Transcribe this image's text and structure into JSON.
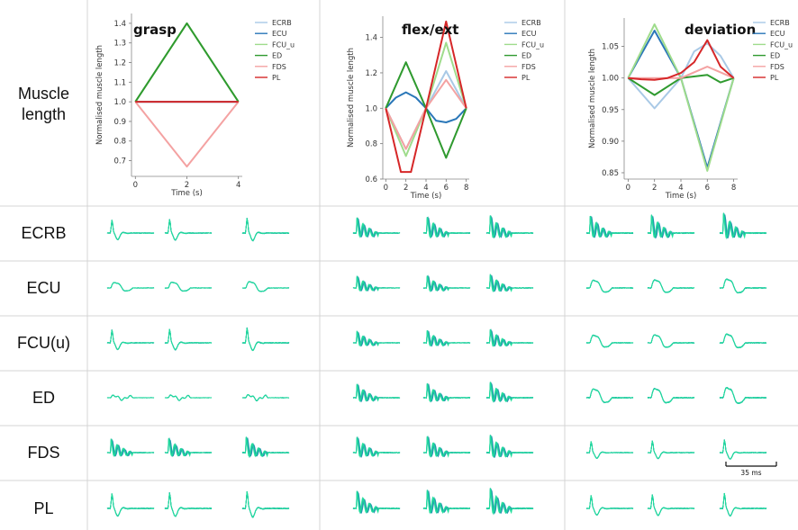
{
  "row_labels": [
    "Muscle length",
    "ECRB",
    "ECU",
    "FCU(u)",
    "ED",
    "FDS",
    "PL"
  ],
  "scale_bar_label": "35 ms",
  "colors": {
    "ECRB": "#a9c9e6",
    "ECU": "#2a77b8",
    "FCU_u": "#9fdc8c",
    "ED": "#2f9a2f",
    "FDS": "#f4a2a2",
    "PL": "#d62728",
    "wave_dark": "#1347b8",
    "wave_light": "#20e39a"
  },
  "chart_data": [
    {
      "type": "line",
      "title": "grasp",
      "xlabel": "Time (s)",
      "ylabel": "Normalised muscle length",
      "xlim": [
        -0.15,
        4.15
      ],
      "ylim": [
        0.62,
        1.45
      ],
      "xticks": [
        0,
        2,
        4
      ],
      "yticks": [
        0.7,
        0.8,
        0.9,
        1.0,
        1.1,
        1.2,
        1.3,
        1.4
      ],
      "ytick_labels": [
        "0.7",
        "0.8",
        "0.9",
        "1.0",
        "1.1",
        "1.2",
        "1.3",
        "1.4"
      ],
      "legend": "top-right",
      "series": [
        {
          "name": "ECRB",
          "x": [
            0,
            2,
            4
          ],
          "y": [
            1.0,
            1.0,
            1.0
          ]
        },
        {
          "name": "ECU",
          "x": [
            0,
            2,
            4
          ],
          "y": [
            1.0,
            1.0,
            1.0
          ]
        },
        {
          "name": "FCU_u",
          "x": [
            0,
            2,
            4
          ],
          "y": [
            1.0,
            1.4,
            1.0
          ]
        },
        {
          "name": "ED",
          "x": [
            0,
            2,
            4
          ],
          "y": [
            1.0,
            1.4,
            1.0
          ]
        },
        {
          "name": "FDS",
          "x": [
            0,
            2,
            4
          ],
          "y": [
            1.0,
            0.67,
            1.0
          ]
        },
        {
          "name": "PL",
          "x": [
            0,
            2,
            4
          ],
          "y": [
            1.0,
            1.0,
            1.0
          ]
        }
      ]
    },
    {
      "type": "line",
      "title": "flex/ext",
      "xlabel": "Time (s)",
      "ylabel": "Normalised muscle length",
      "xlim": [
        -0.3,
        8.3
      ],
      "ylim": [
        0.6,
        1.52
      ],
      "xticks": [
        0,
        2,
        4,
        6,
        8
      ],
      "yticks": [
        0.6,
        0.8,
        1.0,
        1.2,
        1.4
      ],
      "ytick_labels": [
        "0.6",
        "0.8",
        "1.0",
        "1.2",
        "1.4"
      ],
      "legend": "top-right",
      "series": [
        {
          "name": "ECRB",
          "x": [
            0,
            2,
            4,
            6,
            8
          ],
          "y": [
            1.0,
            0.77,
            1.0,
            1.21,
            1.0
          ]
        },
        {
          "name": "ECU",
          "x": [
            0,
            1,
            2,
            3,
            4,
            5,
            6,
            7,
            8
          ],
          "y": [
            1.0,
            1.06,
            1.09,
            1.06,
            1.0,
            0.93,
            0.92,
            0.94,
            1.0
          ]
        },
        {
          "name": "FCU_u",
          "x": [
            0,
            2,
            4,
            6,
            8
          ],
          "y": [
            1.0,
            0.73,
            1.0,
            1.37,
            1.0
          ]
        },
        {
          "name": "ED",
          "x": [
            0,
            2,
            4,
            6,
            8
          ],
          "y": [
            1.0,
            1.26,
            1.0,
            0.72,
            1.0
          ]
        },
        {
          "name": "FDS",
          "x": [
            0,
            2,
            4,
            6,
            8
          ],
          "y": [
            1.0,
            0.77,
            1.0,
            1.16,
            1.0
          ]
        },
        {
          "name": "PL",
          "x": [
            0,
            1.5,
            2.5,
            4,
            6,
            8
          ],
          "y": [
            1.0,
            0.64,
            0.64,
            1.0,
            1.49,
            1.0
          ]
        }
      ]
    },
    {
      "type": "line",
      "title": "deviation",
      "xlabel": "Time (s)",
      "ylabel": "Normalised muscle length",
      "xlim": [
        -0.3,
        8.3
      ],
      "ylim": [
        0.84,
        1.095
      ],
      "xticks": [
        0,
        2,
        4,
        6,
        8
      ],
      "yticks": [
        0.85,
        0.9,
        0.95,
        1.0,
        1.05
      ],
      "ytick_labels": [
        "0.85",
        "0.90",
        "0.95",
        "1.00",
        "1.05"
      ],
      "legend": "top-right",
      "series": [
        {
          "name": "ECRB",
          "x": [
            0,
            2,
            4,
            5,
            6,
            7,
            8
          ],
          "y": [
            1.0,
            0.952,
            1.0,
            1.042,
            1.055,
            1.035,
            1.0
          ]
        },
        {
          "name": "ECU",
          "x": [
            0,
            2,
            4,
            6,
            8
          ],
          "y": [
            1.0,
            1.075,
            1.0,
            0.858,
            1.0
          ]
        },
        {
          "name": "FCU_u",
          "x": [
            0,
            2,
            4,
            6,
            8
          ],
          "y": [
            1.0,
            1.085,
            1.0,
            0.853,
            1.0
          ]
        },
        {
          "name": "ED",
          "x": [
            0,
            2,
            4,
            6,
            7,
            8
          ],
          "y": [
            1.0,
            0.973,
            1.0,
            1.005,
            0.993,
            1.0
          ]
        },
        {
          "name": "FDS",
          "x": [
            0,
            2,
            4,
            6,
            8
          ],
          "y": [
            1.0,
            1.0,
            1.0,
            1.018,
            1.0
          ]
        },
        {
          "name": "PL",
          "x": [
            0,
            1,
            2,
            3,
            4,
            5,
            6,
            7,
            8
          ],
          "y": [
            1.0,
            0.998,
            0.997,
            1.0,
            1.008,
            1.025,
            1.06,
            1.018,
            1.0
          ]
        }
      ]
    }
  ]
}
